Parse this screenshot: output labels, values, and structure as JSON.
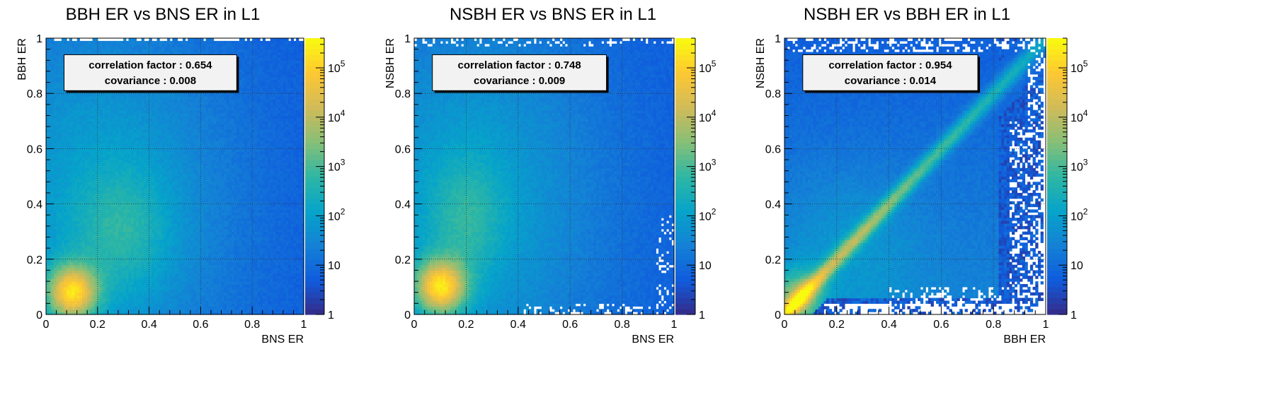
{
  "chart_data": [
    {
      "type": "heatmap",
      "title": "BBH ER vs BNS ER in L1",
      "xlabel": "BNS ER",
      "ylabel": "BBH ER",
      "xlim": [
        0,
        1
      ],
      "ylim": [
        0,
        1
      ],
      "xticks": [
        "0",
        "0.2",
        "0.4",
        "0.6",
        "0.8",
        "1"
      ],
      "yticks": [
        "0",
        "0.2",
        "0.4",
        "0.6",
        "0.8",
        "1"
      ],
      "z_scale": "log",
      "z_range": [
        1,
        400000
      ],
      "colorbar_ticks": [
        "1",
        "10",
        "10^2",
        "10^3",
        "10^4",
        "10^5"
      ],
      "grid": true,
      "peak": [
        0.1,
        0.08
      ],
      "correlation_factor": "0.654",
      "covariance": "0.008",
      "stats_box": {
        "line1": "correlation factor : 0.654",
        "line2": "covariance : 0.008"
      }
    },
    {
      "type": "heatmap",
      "title": "NSBH ER vs BNS ER in L1",
      "xlabel": "BNS ER",
      "ylabel": "NSBH ER",
      "xlim": [
        0,
        1
      ],
      "ylim": [
        0,
        1
      ],
      "xticks": [
        "0",
        "0.2",
        "0.4",
        "0.6",
        "0.8",
        "1"
      ],
      "yticks": [
        "0",
        "0.2",
        "0.4",
        "0.6",
        "0.8",
        "1"
      ],
      "z_scale": "log",
      "z_range": [
        1,
        400000
      ],
      "colorbar_ticks": [
        "1",
        "10",
        "10^2",
        "10^3",
        "10^4",
        "10^5"
      ],
      "grid": true,
      "peak": [
        0.1,
        0.1
      ],
      "correlation_factor": "0.748",
      "covariance": "0.009",
      "stats_box": {
        "line1": "correlation factor : 0.748",
        "line2": "covariance : 0.009"
      }
    },
    {
      "type": "heatmap",
      "title": "NSBH ER vs BBH ER in L1",
      "xlabel": "BBH ER",
      "ylabel": "NSBH ER",
      "xlim": [
        0,
        1
      ],
      "ylim": [
        0,
        1
      ],
      "xticks": [
        "0",
        "0.2",
        "0.4",
        "0.6",
        "0.8",
        "1"
      ],
      "yticks": [
        "0",
        "0.2",
        "0.4",
        "0.6",
        "0.8",
        "1"
      ],
      "z_scale": "log",
      "z_range": [
        1,
        400000
      ],
      "colorbar_ticks": [
        "1",
        "10",
        "10^2",
        "10^3",
        "10^4",
        "10^5"
      ],
      "grid": true,
      "peak": [
        0.05,
        0.06
      ],
      "correlation_factor": "0.954",
      "covariance": "0.014",
      "stats_box": {
        "line1": "correlation factor : 0.954",
        "line2": "covariance : 0.014"
      }
    }
  ],
  "colormap": [
    "#352a87",
    "#0f5cdd",
    "#1481d6",
    "#06a4ca",
    "#2eb7a4",
    "#87bf77",
    "#d1bb59",
    "#fec832",
    "#f9fb0e"
  ]
}
